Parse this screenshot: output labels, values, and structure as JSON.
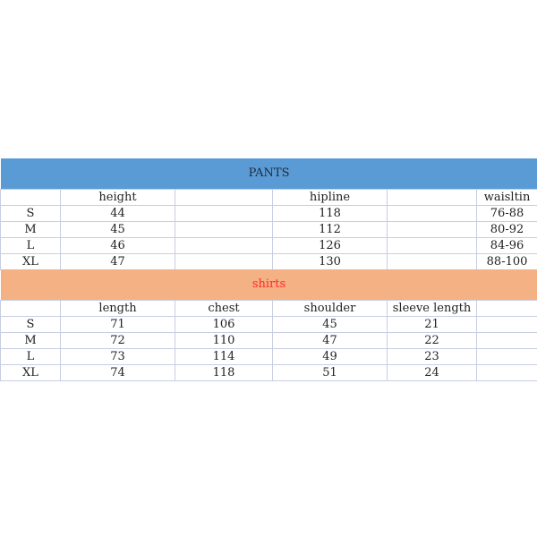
{
  "colors": {
    "pants_header": "#5b9bd5",
    "shirts_header": "#f4b183",
    "shirts_title": "#ff2a2a"
  },
  "pants": {
    "title": "PANTS",
    "headers": [
      "",
      "height",
      "",
      "hipline",
      "",
      "waisltin"
    ],
    "rows": [
      [
        "S",
        "44",
        "",
        "118",
        "",
        "76-88"
      ],
      [
        "M",
        "45",
        "",
        "112",
        "",
        "80-92"
      ],
      [
        "L",
        "46",
        "",
        "126",
        "",
        "84-96"
      ],
      [
        "XL",
        "47",
        "",
        "130",
        "",
        "88-100"
      ]
    ]
  },
  "shirts": {
    "title": "shirts",
    "headers": [
      "",
      "length",
      "chest",
      "shoulder",
      "sleeve length",
      ""
    ],
    "rows": [
      [
        "S",
        "71",
        "106",
        "45",
        "21",
        ""
      ],
      [
        "M",
        "72",
        "110",
        "47",
        "22",
        ""
      ],
      [
        "L",
        "73",
        "114",
        "49",
        "23",
        ""
      ],
      [
        "XL",
        "74",
        "118",
        "51",
        "24",
        ""
      ]
    ]
  }
}
